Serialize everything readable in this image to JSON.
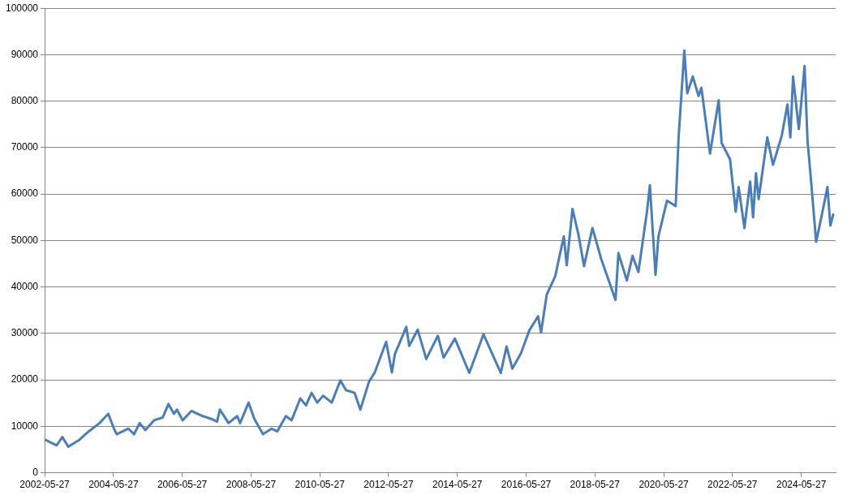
{
  "chart_data": {
    "type": "line",
    "x": [
      "2002-06",
      "2002-10",
      "2002-12",
      "2003-02",
      "2003-06",
      "2003-09",
      "2004-01",
      "2004-04",
      "2004-06",
      "2004-07",
      "2004-11",
      "2005-01",
      "2005-03",
      "2005-05",
      "2005-08",
      "2005-11",
      "2006-01",
      "2006-03",
      "2006-04",
      "2006-06",
      "2006-09",
      "2007-01",
      "2007-04",
      "2007-06",
      "2007-07",
      "2007-10",
      "2008-01",
      "2008-02",
      "2008-05",
      "2008-07",
      "2008-10",
      "2009-01",
      "2009-03",
      "2009-06",
      "2009-08",
      "2009-11",
      "2010-01",
      "2010-03",
      "2010-05",
      "2010-07",
      "2010-10",
      "2011-01",
      "2011-03",
      "2011-06",
      "2011-08",
      "2011-11",
      "2012-01",
      "2012-05",
      "2012-07",
      "2012-08",
      "2012-12",
      "2013-01",
      "2013-04",
      "2013-07",
      "2013-11",
      "2014-01",
      "2014-05",
      "2014-10",
      "2015-03",
      "2015-09",
      "2015-11",
      "2016-01",
      "2016-04",
      "2016-07",
      "2016-10",
      "2016-11",
      "2017-01",
      "2017-04",
      "2017-05",
      "2017-07",
      "2017-08",
      "2017-10",
      "2017-12",
      "2018-02",
      "2018-05",
      "2018-08",
      "2019-01",
      "2019-02",
      "2019-05",
      "2019-07",
      "2019-09",
      "2019-12",
      "2020-01",
      "2020-03",
      "2020-04",
      "2020-07",
      "2020-10",
      "2020-11",
      "2021-01",
      "2021-02",
      "2021-04",
      "2021-06",
      "2021-07",
      "2021-10",
      "2022-01",
      "2022-02",
      "2022-05",
      "2022-07",
      "2022-08",
      "2022-10",
      "2022-12",
      "2023-01",
      "2023-02",
      "2023-03",
      "2023-06",
      "2023-08",
      "2023-11",
      "2024-01",
      "2024-02",
      "2024-03",
      "2024-05",
      "2024-07",
      "2024-08",
      "2024-09",
      "2024-11",
      "2025-01",
      "2025-03",
      "2025-04",
      "2025-05"
    ],
    "series": [
      {
        "color": "#4a7ebb",
        "values": [
          7100,
          5900,
          7700,
          5600,
          7100,
          8800,
          10700,
          12700,
          9500,
          8300,
          9500,
          8300,
          10700,
          9200,
          11300,
          11900,
          14800,
          12700,
          13600,
          11300,
          13300,
          12200,
          11600,
          11000,
          13600,
          10700,
          12200,
          10700,
          15100,
          11600,
          8300,
          9500,
          8900,
          12200,
          11300,
          16000,
          14500,
          17200,
          15100,
          16600,
          15100,
          19900,
          17800,
          17200,
          13600,
          19600,
          21600,
          28200,
          21600,
          25500,
          31400,
          27300,
          30800,
          24500,
          29500,
          24800,
          28900,
          21500,
          29800,
          21500,
          27200,
          22400,
          25700,
          30700,
          33700,
          30200,
          38400,
          42300,
          45200,
          50900,
          44700,
          56800,
          51500,
          44500,
          52700,
          46100,
          37200,
          47300,
          41400,
          46700,
          43200,
          56200,
          61900,
          42600,
          50900,
          58600,
          57400,
          72200,
          90900,
          81700,
          85300,
          81100,
          82900,
          68700,
          80200,
          71000,
          67500,
          56200,
          61500,
          52700,
          62700,
          55000,
          64500,
          58900,
          72200,
          66300,
          72500,
          79300,
          72200,
          85300,
          74000,
          87600,
          71600,
          64500,
          49700,
          55600,
          61500,
          53200,
          55600
        ]
      }
    ],
    "xlim": [
      "2002-05-27",
      "2025-05-27"
    ],
    "xticks": [
      "2002-05-27",
      "2004-05-27",
      "2006-05-27",
      "2008-05-27",
      "2010-05-27",
      "2012-05-27",
      "2014-05-27",
      "2016-05-27",
      "2018-05-27",
      "2020-05-27",
      "2022-05-27",
      "2024-05-27"
    ],
    "ylim": [
      0,
      100000
    ],
    "yticks": [
      0,
      10000,
      20000,
      30000,
      40000,
      50000,
      60000,
      70000,
      80000,
      90000,
      100000
    ],
    "grid": "y",
    "marker": "none",
    "line_style": "solid"
  }
}
